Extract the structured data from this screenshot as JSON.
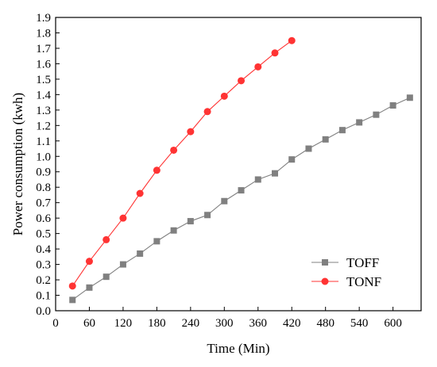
{
  "chart_data": {
    "type": "line",
    "title": "",
    "xlabel": "Time (Min)",
    "ylabel": "Power consumption (kwh)",
    "xlim": [
      0,
      650
    ],
    "ylim": [
      0,
      1.9
    ],
    "xticks": [
      0,
      60,
      120,
      180,
      240,
      300,
      360,
      420,
      480,
      540,
      600
    ],
    "yticks": [
      0.0,
      0.1,
      0.2,
      0.3,
      0.4,
      0.5,
      0.6,
      0.7,
      0.8,
      0.9,
      1.0,
      1.1,
      1.2,
      1.3,
      1.4,
      1.5,
      1.6,
      1.7,
      1.8,
      1.9
    ],
    "ytick_labels": [
      "0.0",
      "0.1",
      "0.2",
      "0.3",
      "0.4",
      "0.5",
      "0.6",
      "0.7",
      "0.8",
      "0.9",
      "1.0",
      "1.1",
      "1.2",
      "1.3",
      "1.4",
      "1.5",
      "1.6",
      "1.7",
      "1.8",
      "1.9"
    ],
    "grid": false,
    "legend_position": "lower-right",
    "series": [
      {
        "name": "TOFF",
        "color": "#808080",
        "marker": "square",
        "x": [
          30,
          60,
          90,
          120,
          150,
          180,
          210,
          240,
          270,
          300,
          330,
          360,
          390,
          420,
          450,
          480,
          510,
          540,
          570,
          600,
          630
        ],
        "y": [
          0.07,
          0.15,
          0.22,
          0.3,
          0.37,
          0.45,
          0.52,
          0.58,
          0.62,
          0.71,
          0.78,
          0.85,
          0.89,
          0.98,
          1.05,
          1.11,
          1.17,
          1.22,
          1.27,
          1.33,
          1.38
        ]
      },
      {
        "name": "TONF",
        "color": "#ff3333",
        "marker": "circle",
        "x": [
          30,
          60,
          90,
          120,
          150,
          180,
          210,
          240,
          270,
          300,
          330,
          360,
          390,
          420
        ],
        "y": [
          0.16,
          0.32,
          0.46,
          0.6,
          0.76,
          0.91,
          1.04,
          1.16,
          1.29,
          1.39,
          1.49,
          1.58,
          1.67,
          1.75
        ]
      }
    ]
  }
}
